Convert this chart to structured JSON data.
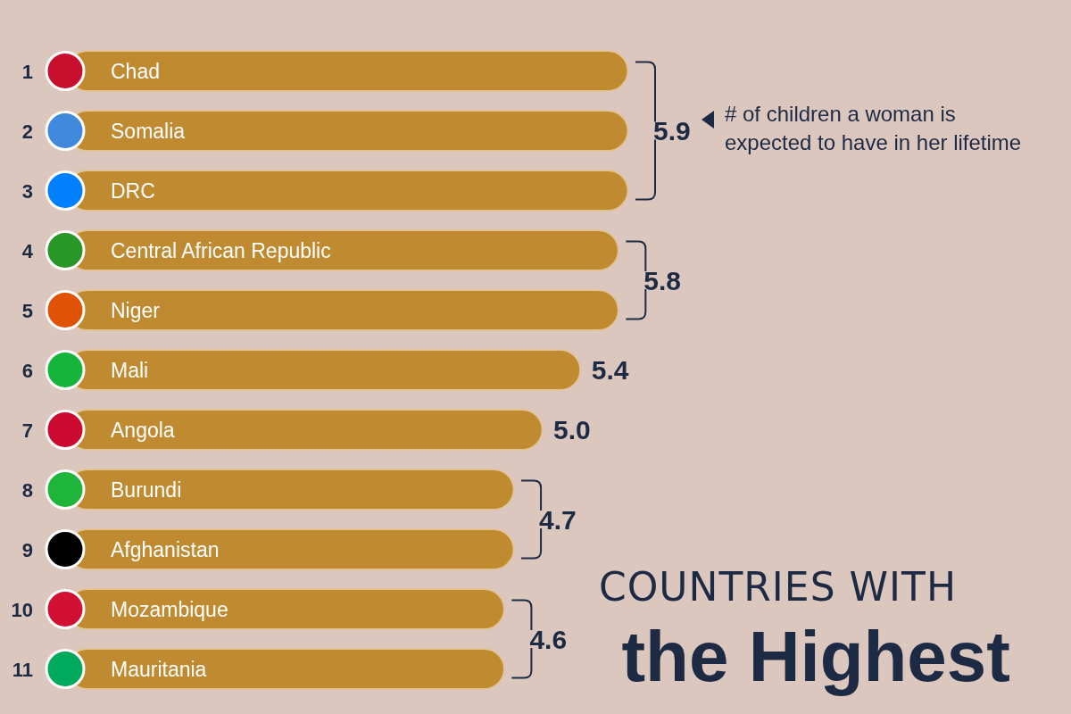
{
  "chart_data": {
    "type": "bar",
    "orientation": "horizontal",
    "title": "COUNTRIES WITH",
    "subtitle": "the Highest",
    "categories": [
      "Chad",
      "Somalia",
      "DRC",
      "Central African Republic",
      "Niger",
      "Mali",
      "Angola",
      "Burundi",
      "Afghanistan",
      "Mozambique",
      "Mauritania"
    ],
    "values": [
      5.9,
      5.9,
      5.9,
      5.8,
      5.8,
      5.4,
      5.0,
      4.7,
      4.7,
      4.6,
      4.6
    ],
    "value_labels": [
      null,
      "5.9",
      null,
      "5.8",
      null,
      "5.4",
      "5.0",
      "4.7",
      null,
      "4.6",
      null
    ],
    "color": "#c08a30",
    "annotations": [
      "1",
      "2",
      "3",
      "4",
      "5",
      "6",
      "7",
      "8",
      "9",
      "10",
      "11",
      "# of children a woman is expected to have in her lifetime"
    ]
  }
}
